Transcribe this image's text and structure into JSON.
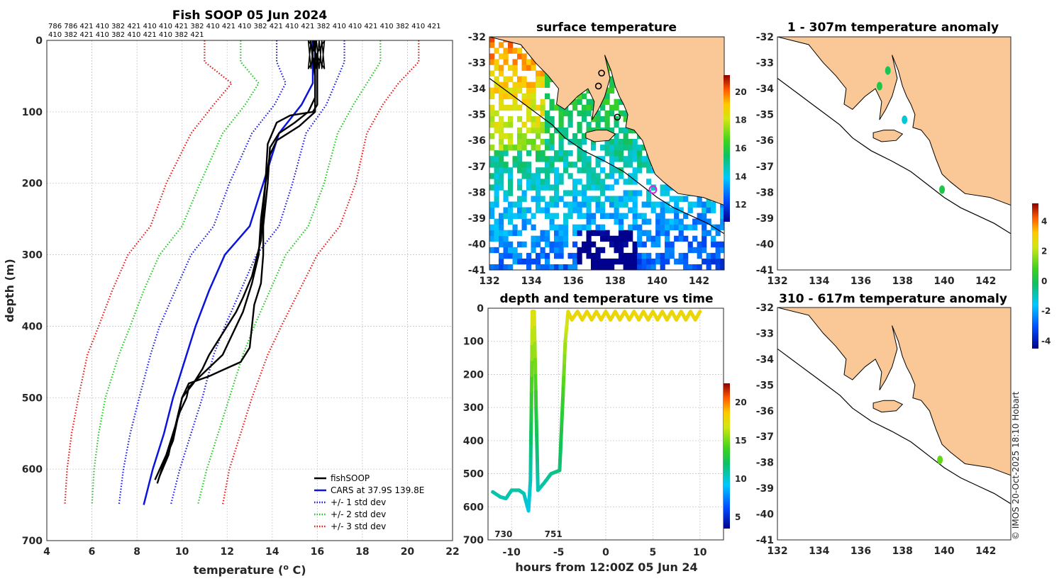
{
  "colors": {
    "cars": "#0a14dc",
    "std1": "#1414e6",
    "std2": "#1ec81e",
    "std3": "#e61414",
    "land": "#f9c896",
    "profile": "#000000"
  },
  "chart_data": [
    {
      "type": "line",
      "title": "Fish SOOP 05 Jun 2024",
      "xlabel": "temperature (",
      "xlabel_sup": "o",
      "xlabel_end": " C)",
      "ylabel": "depth (m)",
      "xlim": [
        4,
        22
      ],
      "ylim": [
        0,
        700
      ],
      "xticks": [
        4,
        6,
        8,
        10,
        12,
        14,
        16,
        18,
        20,
        22
      ],
      "yticks": [
        0,
        100,
        200,
        300,
        400,
        500,
        600,
        700
      ],
      "header_row1": "786 786 421 410 382 421 410 410 421 382 410 421 410 382 421 410 421 382 410 410 421 410 382 410 421",
      "header_row2": "410 382 421 410 382 410 421 410 382 421",
      "legend": [
        {
          "label": "fishSOOP",
          "color": "#000000",
          "style": "solid"
        },
        {
          "label": "CARS at 37.9S 139.8E",
          "color": "#0a14dc",
          "style": "solid"
        },
        {
          "label": "+/- 1 std dev",
          "color": "#1414e6",
          "style": "dotted"
        },
        {
          "label": "+/- 2 std dev",
          "color": "#1ec81e",
          "style": "dotted"
        },
        {
          "label": "+/- 3 std dev",
          "color": "#e61414",
          "style": "dotted"
        }
      ],
      "depths": [
        0,
        30,
        60,
        90,
        130,
        200,
        260,
        300,
        350,
        400,
        440,
        500,
        550,
        600,
        650
      ],
      "cars_mean": [
        15.8,
        15.8,
        15.8,
        15.3,
        14.3,
        13.6,
        13.0,
        11.9,
        11.2,
        10.6,
        10.2,
        9.6,
        9.2,
        8.7,
        8.3
      ],
      "std_bands": [
        {
          "name": "minus3",
          "values": [
            11.0,
            11.0,
            12.2,
            11.4,
            10.4,
            9.3,
            8.6,
            7.6,
            6.9,
            6.3,
            5.8,
            5.4,
            5.1,
            4.9,
            4.8
          ]
        },
        {
          "name": "minus2",
          "values": [
            12.6,
            12.6,
            13.4,
            12.8,
            11.8,
            10.8,
            10.0,
            9.0,
            8.3,
            7.7,
            7.2,
            6.6,
            6.3,
            6.1,
            6.0
          ]
        },
        {
          "name": "minus1",
          "values": [
            14.2,
            14.2,
            14.6,
            14.1,
            13.1,
            12.1,
            11.4,
            10.4,
            9.7,
            9.0,
            8.6,
            8.1,
            7.7,
            7.4,
            7.2
          ]
        },
        {
          "name": "plus1",
          "values": [
            17.2,
            17.2,
            16.8,
            16.4,
            15.5,
            14.9,
            14.3,
            13.3,
            12.6,
            11.9,
            11.4,
            10.9,
            10.4,
            9.9,
            9.5
          ]
        },
        {
          "name": "plus2",
          "values": [
            18.8,
            18.8,
            18.2,
            17.6,
            16.9,
            16.3,
            15.6,
            14.6,
            13.9,
            13.2,
            12.7,
            12.1,
            11.6,
            11.1,
            10.7
          ]
        },
        {
          "name": "plus3",
          "values": [
            20.5,
            20.5,
            19.6,
            18.9,
            18.2,
            17.7,
            17.0,
            16.0,
            15.2,
            14.4,
            13.8,
            13.1,
            12.6,
            12.1,
            11.8
          ]
        }
      ],
      "profiles": [
        {
          "depths": [
            0,
            30,
            60,
            90,
            100,
            105,
            115,
            145,
            200,
            250,
            300,
            340,
            380,
            420,
            440,
            455,
            470,
            485,
            500,
            520,
            550,
            580,
            610
          ],
          "temps": [
            15.8,
            16.0,
            16.0,
            16.0,
            15.8,
            14.8,
            14.2,
            13.8,
            13.7,
            13.5,
            13.4,
            13.1,
            12.7,
            12.1,
            11.8,
            11.3,
            10.8,
            10.3,
            10.2,
            9.9,
            9.6,
            9.4,
            9.0
          ]
        },
        {
          "depths": [
            0,
            40,
            80,
            100,
            115,
            130,
            150,
            200,
            260,
            300,
            340,
            370,
            400,
            430,
            450,
            460,
            470,
            480,
            500,
            530,
            560,
            590,
            620
          ],
          "temps": [
            15.9,
            15.9,
            15.9,
            15.6,
            15.0,
            14.3,
            13.9,
            13.8,
            13.6,
            13.6,
            13.5,
            13.2,
            13.1,
            13.0,
            12.6,
            11.9,
            11.2,
            10.3,
            10.0,
            9.8,
            9.6,
            9.2,
            8.9
          ]
        },
        {
          "depths": [
            0,
            50,
            100,
            120,
            140,
            160,
            200,
            280,
            330,
            360,
            380,
            400,
            420,
            440,
            460,
            480,
            500,
            540,
            580,
            615
          ],
          "temps": [
            15.7,
            15.9,
            15.9,
            15.2,
            14.2,
            13.9,
            13.7,
            13.5,
            13.1,
            12.7,
            12.4,
            12.0,
            11.6,
            11.2,
            10.9,
            10.5,
            10.0,
            9.7,
            9.3,
            8.8
          ]
        }
      ]
    },
    {
      "type": "heatmap",
      "title": "surface temperature",
      "xticks": [
        132,
        134,
        136,
        138,
        140,
        142
      ],
      "yticks": [
        -32,
        -33,
        -34,
        -35,
        -36,
        -37,
        -38,
        -39,
        -40,
        -41
      ],
      "xlim": [
        132,
        143.2
      ],
      "ylim": [
        -41,
        -32
      ],
      "colorbar_ticks": [
        12,
        14,
        16,
        18,
        20
      ],
      "colorbar_range": [
        10.8,
        21.2
      ],
      "profile_location": [
        139.8,
        -37.9
      ]
    },
    {
      "type": "heatmap",
      "title": "1 - 307m temperature anomaly",
      "xticks": [
        132,
        134,
        136,
        138,
        140,
        142
      ],
      "yticks": [
        -32,
        -33,
        -34,
        -35,
        -36,
        -37,
        -38,
        -39,
        -40,
        -41
      ],
      "xlim": [
        132,
        143.2
      ],
      "ylim": [
        -41,
        -32
      ],
      "colorbar_ticks": [
        4,
        2,
        0,
        -2,
        -4
      ],
      "colorbar_range": [
        -4.5,
        5.2
      ],
      "markers": [
        {
          "lon": 137.3,
          "lat": -33.3,
          "anomaly": 0.1
        },
        {
          "lon": 136.9,
          "lat": -33.9,
          "anomaly": 0.2
        },
        {
          "lon": 138.1,
          "lat": -35.2,
          "anomaly": -1.2
        },
        {
          "lon": 139.9,
          "lat": -37.9,
          "anomaly": 0.2
        }
      ]
    },
    {
      "type": "heatmap",
      "title": "310 - 617m temperature anomaly",
      "xticks": [
        132,
        134,
        136,
        138,
        140,
        142
      ],
      "yticks": [
        -32,
        -33,
        -34,
        -35,
        -36,
        -37,
        -38,
        -39,
        -40,
        -41
      ],
      "xlim": [
        132,
        143.2
      ],
      "ylim": [
        -41,
        -32
      ],
      "markers": [
        {
          "lon": 139.8,
          "lat": -37.9,
          "anomaly": 1.2
        }
      ]
    },
    {
      "type": "scatter",
      "title": "depth and temperature vs time",
      "xlabel": "hours from 12:00Z 05 Jun 24",
      "xlim": [
        -12.5,
        12.5
      ],
      "ylim": [
        0,
        700
      ],
      "xticks": [
        -10,
        -5,
        0,
        5,
        10
      ],
      "yticks": [
        0,
        100,
        200,
        300,
        400,
        500,
        600,
        700
      ],
      "colorbar_ticks": [
        5,
        10,
        15,
        20
      ],
      "colorbar_range": [
        3.5,
        22.5
      ],
      "annotations": [
        {
          "text": "730",
          "x": -11.8
        },
        {
          "text": "751",
          "x": -6.5
        }
      ],
      "track": [
        {
          "hours": -12.0,
          "depth": 555,
          "temp": 10.9
        },
        {
          "hours": -11.2,
          "depth": 570,
          "temp": 10.7
        },
        {
          "hours": -10.6,
          "depth": 575,
          "temp": 10.6
        },
        {
          "hours": -10.0,
          "depth": 550,
          "temp": 10.8
        },
        {
          "hours": -9.2,
          "depth": 550,
          "temp": 10.8
        },
        {
          "hours": -8.7,
          "depth": 560,
          "temp": 10.6
        },
        {
          "hours": -8.2,
          "depth": 612,
          "temp": 9.6
        },
        {
          "hours": -8.0,
          "depth": 520,
          "temp": 10.3
        },
        {
          "hours": -7.9,
          "depth": 300,
          "temp": 13.0
        },
        {
          "hours": -7.8,
          "depth": 10,
          "temp": 17.5
        },
        {
          "hours": -7.6,
          "depth": 10,
          "temp": 17.5
        },
        {
          "hours": -7.4,
          "depth": 300,
          "temp": 13.2
        },
        {
          "hours": -7.2,
          "depth": 550,
          "temp": 10.4
        },
        {
          "hours": -6.6,
          "depth": 530,
          "temp": 10.8
        },
        {
          "hours": -5.8,
          "depth": 500,
          "temp": 11.2
        },
        {
          "hours": -4.9,
          "depth": 490,
          "temp": 11.5
        },
        {
          "hours": -4.6,
          "depth": 300,
          "temp": 13.4
        },
        {
          "hours": -4.3,
          "depth": 100,
          "temp": 16.0
        },
        {
          "hours": -4.0,
          "depth": 10,
          "temp": 17.5
        },
        {
          "hours": -3.6,
          "depth": 35,
          "temp": 17.8
        },
        {
          "hours": -3.0,
          "depth": 10,
          "temp": 17.8
        },
        {
          "hours": -2.5,
          "depth": 35,
          "temp": 17.8
        },
        {
          "hours": -2.0,
          "depth": 10,
          "temp": 17.8
        },
        {
          "hours": -1.5,
          "depth": 35,
          "temp": 17.8
        },
        {
          "hours": -1.0,
          "depth": 10,
          "temp": 17.8
        },
        {
          "hours": -0.5,
          "depth": 35,
          "temp": 17.8
        },
        {
          "hours": 0.0,
          "depth": 10,
          "temp": 17.8
        },
        {
          "hours": 0.5,
          "depth": 35,
          "temp": 17.8
        },
        {
          "hours": 1.0,
          "depth": 10,
          "temp": 17.8
        },
        {
          "hours": 1.5,
          "depth": 35,
          "temp": 17.8
        },
        {
          "hours": 2.0,
          "depth": 10,
          "temp": 17.8
        },
        {
          "hours": 2.5,
          "depth": 35,
          "temp": 17.8
        },
        {
          "hours": 3.0,
          "depth": 10,
          "temp": 17.8
        },
        {
          "hours": 3.5,
          "depth": 35,
          "temp": 17.8
        },
        {
          "hours": 4.0,
          "depth": 10,
          "temp": 17.8
        },
        {
          "hours": 4.5,
          "depth": 35,
          "temp": 17.8
        },
        {
          "hours": 5.0,
          "depth": 10,
          "temp": 17.8
        },
        {
          "hours": 5.5,
          "depth": 35,
          "temp": 17.8
        },
        {
          "hours": 6.0,
          "depth": 10,
          "temp": 17.8
        },
        {
          "hours": 6.5,
          "depth": 35,
          "temp": 17.8
        },
        {
          "hours": 7.0,
          "depth": 10,
          "temp": 17.8
        },
        {
          "hours": 7.5,
          "depth": 35,
          "temp": 17.8
        },
        {
          "hours": 8.0,
          "depth": 10,
          "temp": 17.8
        },
        {
          "hours": 8.5,
          "depth": 35,
          "temp": 17.8
        },
        {
          "hours": 9.0,
          "depth": 10,
          "temp": 17.8
        },
        {
          "hours": 9.5,
          "depth": 35,
          "temp": 17.8
        },
        {
          "hours": 10.0,
          "depth": 10,
          "temp": 17.8
        }
      ]
    }
  ],
  "credit": "© IMOS 20-Oct-2025 18:10 Hobart"
}
